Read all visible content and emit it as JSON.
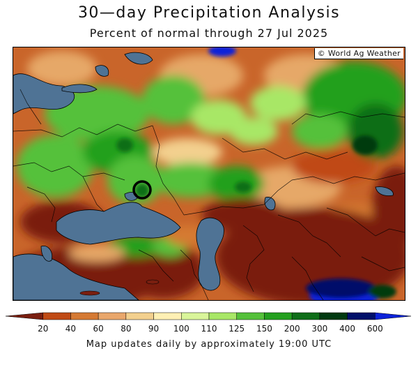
{
  "title": "30—day Precipitation Analysis",
  "subtitle": "Percent of normal through 27 Jul 2025",
  "map": {
    "copyright": "© World Ag Weather",
    "water_color": "#4f7395"
  },
  "legend": {
    "labels": [
      "20",
      "40",
      "60",
      "80",
      "90",
      "100",
      "110",
      "125",
      "150",
      "200",
      "300",
      "400",
      "600"
    ],
    "colors": [
      "#7a1f10",
      "#c04a14",
      "#d57a33",
      "#e9a76b",
      "#f3d08e",
      "#fff0b4",
      "#d9f59a",
      "#a8e766",
      "#54c13a",
      "#23a01e",
      "#0e6e18",
      "#003a10",
      "#00106a",
      "#0d23d9"
    ]
  },
  "footer": "Map updates daily by approximately 19:00 UTC"
}
